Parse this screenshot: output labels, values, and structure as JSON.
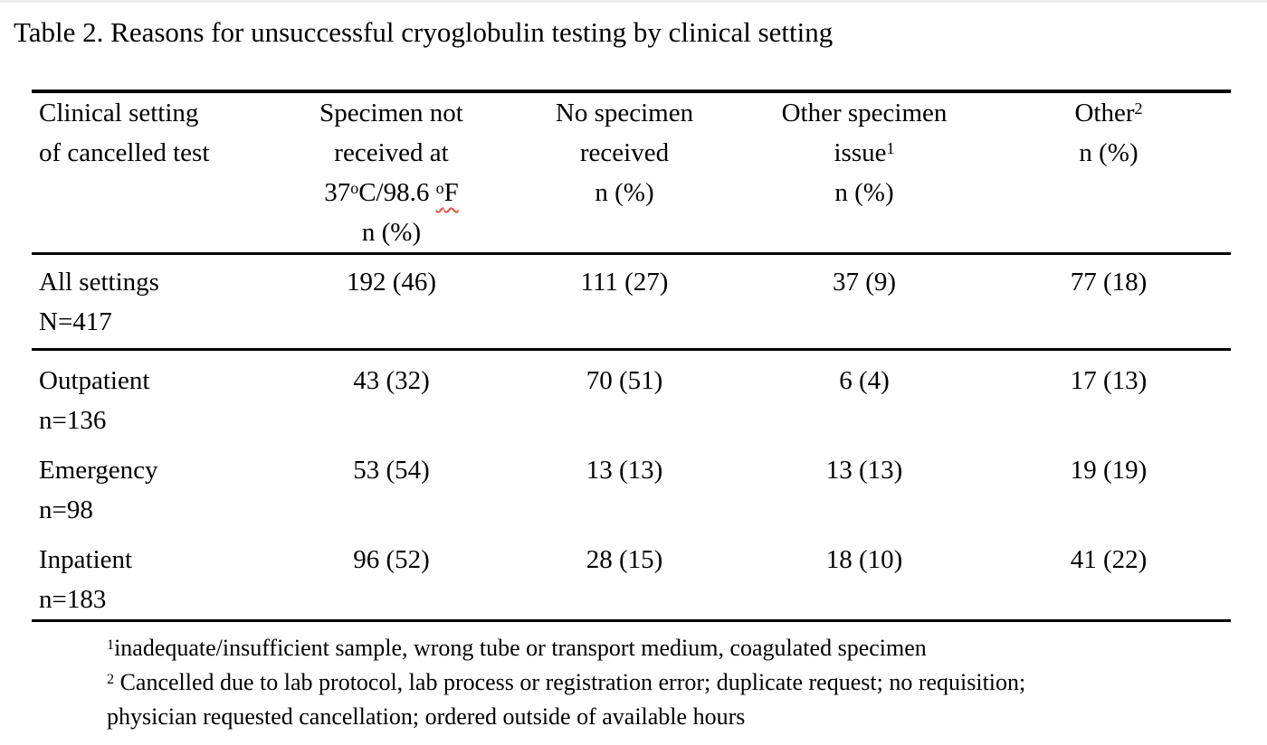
{
  "caption": "Table 2. Reasons for unsuccessful cryoglobulin testing by clinical setting",
  "colors": {
    "background": "#ffffff",
    "text": "#000000",
    "rule": "#000000",
    "spellcheck_squiggle": "#e25044"
  },
  "table": {
    "header": {
      "col1": {
        "line1": "Clinical setting",
        "line2": "of cancelled test"
      },
      "col2": {
        "line1": "Specimen not",
        "line2": "received at",
        "temp_prefix": "37",
        "temp_sup1": "o",
        "temp_mid": "C/98.6 ",
        "temp_sup2": "o",
        "temp_suffix": "F",
        "line4": "n (%)"
      },
      "col3": {
        "line1": "No specimen",
        "line2": "received",
        "line3": "n (%)"
      },
      "col4": {
        "line1": "Other specimen",
        "line2_text": "issue",
        "line2_sup": "1",
        "line3": "n (%)"
      },
      "col5": {
        "line1_text": "Other",
        "line1_sup": "2",
        "line2": "n (%)"
      }
    },
    "rows": [
      {
        "setting": "All settings",
        "n_label": "N=417",
        "values": [
          "192 (46)",
          "111 (27)",
          "37 (9)",
          "77 (18)"
        ]
      },
      {
        "setting": "Outpatient",
        "n_label": "n=136",
        "values": [
          "43 (32)",
          "70 (51)",
          "6 (4)",
          "17 (13)"
        ]
      },
      {
        "setting": "Emergency",
        "n_label": "n=98",
        "values": [
          "53 (54)",
          "13 (13)",
          "13 (13)",
          "19 (19)"
        ]
      },
      {
        "setting": "Inpatient",
        "n_label": "n=183",
        "values": [
          "96 (52)",
          "28 (15)",
          "18 (10)",
          "41 (22)"
        ]
      }
    ]
  },
  "footnotes": {
    "fn1_sup": "1",
    "fn1_text": "inadequate/insufficient sample, wrong tube or transport medium, coagulated specimen",
    "fn2_sup": "2",
    "fn2_text": " Cancelled due to lab protocol, lab process or registration error; duplicate request; no requisition;",
    "fn2_cont": "physician requested cancellation; ordered outside of available hours"
  }
}
